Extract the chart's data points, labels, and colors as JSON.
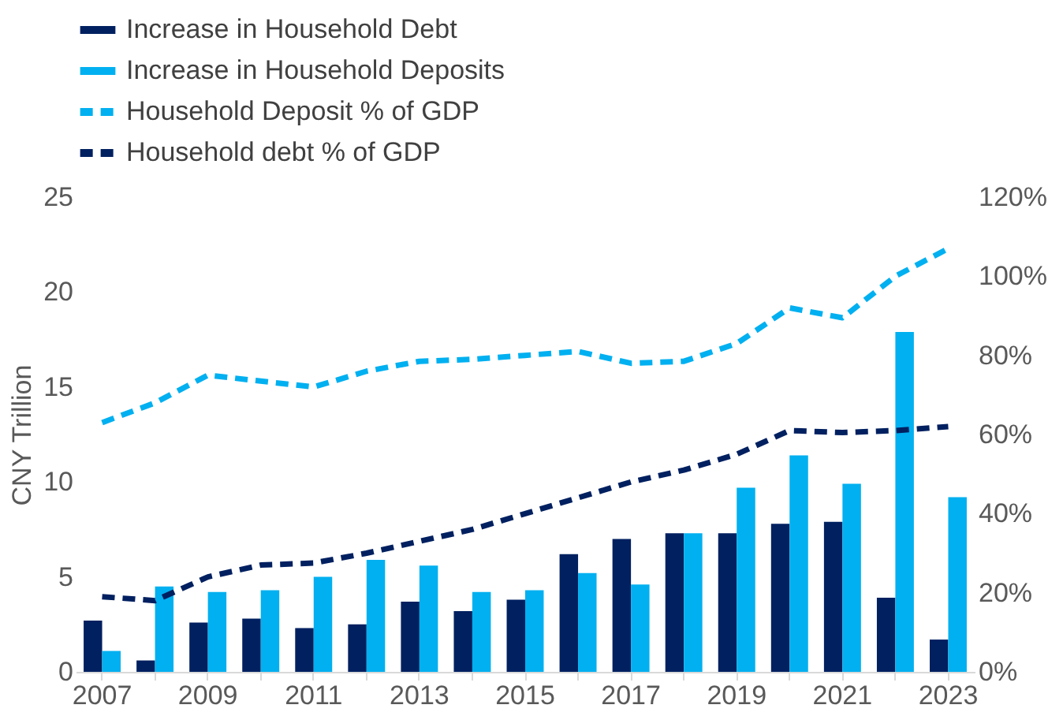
{
  "chart_data": {
    "type": "bar",
    "categories": [
      "2007",
      null,
      "2009",
      null,
      "2011",
      null,
      "2013",
      null,
      "2015",
      null,
      "2017",
      null,
      "2019",
      null,
      "2021",
      null,
      "2023"
    ],
    "ylabel": "CNY Trillion",
    "ylim": [
      0,
      25
    ],
    "yticks": [
      0,
      5,
      10,
      15,
      20,
      25
    ],
    "y2lim": [
      0,
      120
    ],
    "y2ticks": [
      {
        "value": 0,
        "label": "0%"
      },
      {
        "value": 20,
        "label": "20%"
      },
      {
        "value": 40,
        "label": "40%"
      },
      {
        "value": 60,
        "label": "60%"
      },
      {
        "value": 80,
        "label": "80%"
      },
      {
        "value": 100,
        "label": "100%"
      },
      {
        "value": 120,
        "label": "120%"
      }
    ],
    "series": [
      {
        "name": "Increase in Household Debt",
        "color": "#002060",
        "values": [
          2.7,
          0.6,
          2.6,
          2.8,
          2.3,
          2.5,
          3.7,
          3.2,
          3.8,
          6.2,
          7.0,
          7.3,
          7.3,
          7.8,
          7.9,
          3.9,
          1.7
        ]
      },
      {
        "name": "Increase in Household Deposits",
        "color": "#00b0f0",
        "values": [
          1.1,
          4.5,
          4.2,
          4.3,
          5.0,
          5.9,
          5.6,
          4.2,
          4.3,
          5.2,
          4.6,
          7.3,
          9.7,
          11.4,
          9.9,
          17.9,
          9.2
        ]
      },
      {
        "name": "Household Deposit % of GDP",
        "type": "line",
        "axis": "y2",
        "line_style": "dashed",
        "color": "#00b0f0",
        "values": [
          63,
          68,
          75,
          73.5,
          72,
          76,
          78.5,
          79,
          80,
          81,
          78,
          78.5,
          83,
          92,
          89.5,
          100,
          107
        ]
      },
      {
        "name": "Household debt % of GDP",
        "type": "line",
        "axis": "y2",
        "line_style": "dashed",
        "color": "#002060",
        "values": [
          19,
          18,
          24,
          27,
          27.5,
          30,
          33,
          36,
          40,
          44,
          48,
          51,
          55,
          61,
          60.5,
          61,
          62
        ]
      }
    ],
    "legend": "top",
    "grid": false
  }
}
